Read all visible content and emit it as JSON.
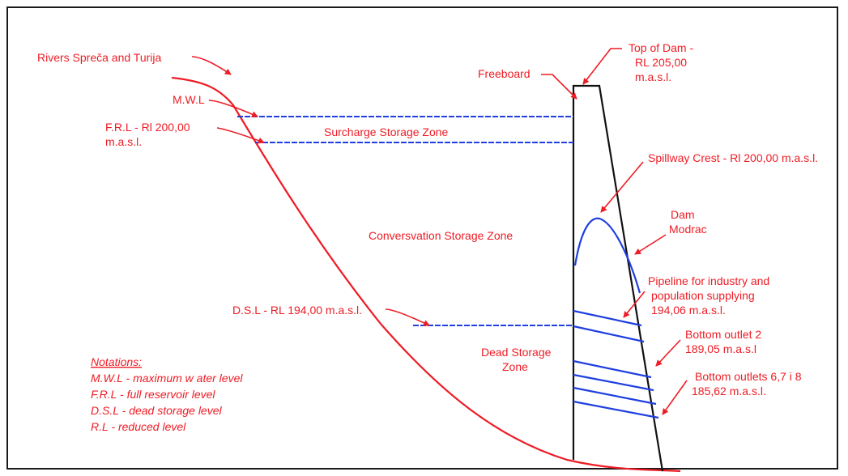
{
  "labels": {
    "rivers": "Rivers Spreča and Turija",
    "mwl": "M.W.L",
    "frl_1": "F.R.L - Rl 200,00",
    "frl_2": "m.a.s.l.",
    "surcharge": "Surcharge Storage Zone",
    "conservation": "Conversvation Storage Zone",
    "dsl": "D.S.L - RL 194,00 m.a.s.l.",
    "dead_1": "Dead Storage",
    "dead_2": "Zone",
    "freeboard": "Freeboard",
    "top_1": "Top of Dam -",
    "top_2": "RL 205,00",
    "top_3": "m.a.s.l.",
    "spillway": "Spillway Crest - Rl 200,00 m.a.s.l.",
    "dam_1": "Dam",
    "dam_2": "Modrac",
    "pipeline_1": "Pipeline for industry and",
    "pipeline_2": "population supplying",
    "pipeline_3": "194,06 m.a.s.l.",
    "outlet2_1": "Bottom outlet 2",
    "outlet2_2": "189,05 m.a.s.l",
    "outlets_1": "Bottom outlets 6,7 i 8",
    "outlets_2": "185,62 m.a.s.l."
  },
  "notations": {
    "title": "Notations:",
    "items": [
      "M.W.L - maximum w ater level",
      "F.R.L - full reservoir level",
      "D.S.L - dead storage level",
      "R.L - reduced level"
    ]
  },
  "colors": {
    "label": "#ee1c25",
    "level": "#1f3fe0",
    "dam": "#111111",
    "frame": "#1a1a1a"
  }
}
